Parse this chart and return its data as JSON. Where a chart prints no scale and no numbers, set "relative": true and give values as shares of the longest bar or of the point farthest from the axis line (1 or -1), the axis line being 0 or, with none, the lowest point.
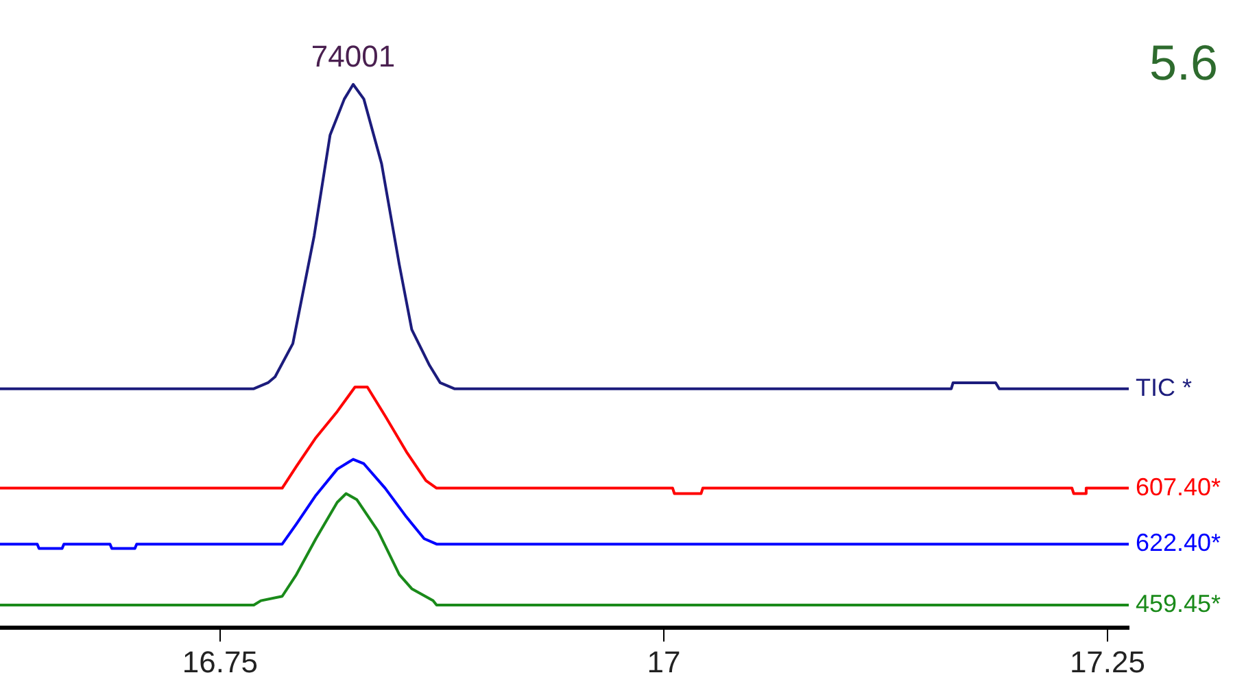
{
  "chart_data": {
    "type": "line",
    "relative": true,
    "xlim": [
      16.626,
      17.262
    ],
    "xticks": [
      16.75,
      17,
      17.25
    ],
    "marker": "none",
    "line_style": "solid",
    "legend": false,
    "annotations": [
      {
        "text": "74001",
        "x": 16.825,
        "y": 1
      },
      "5.6"
    ],
    "series": [
      {
        "name": "TIC *",
        "color": "#1c1c7c",
        "x": [
          16.626,
          16.769,
          16.777,
          16.781,
          16.791,
          16.803,
          16.812,
          16.82,
          16.825,
          16.831,
          16.841,
          16.851,
          16.858,
          16.868,
          16.874,
          16.882,
          17.162,
          17.163,
          17.187,
          17.189,
          17.262
        ],
        "values": [
          0.44,
          0.44,
          0.451,
          0.462,
          0.523,
          0.721,
          0.907,
          0.973,
          1,
          0.973,
          0.854,
          0.668,
          0.549,
          0.483,
          0.451,
          0.44,
          0.44,
          0.451,
          0.451,
          0.44,
          0.44
        ]
      },
      {
        "name": "607.40*",
        "color": "#ff0000",
        "x": [
          16.626,
          16.785,
          16.793,
          16.804,
          16.816,
          16.826,
          16.833,
          16.843,
          16.855,
          16.866,
          16.872,
          17.005,
          17.006,
          17.021,
          17.022,
          17.23,
          17.231,
          17.238,
          17.238,
          17.262
        ],
        "values": [
          0.257,
          0.257,
          0.297,
          0.35,
          0.398,
          0.443,
          0.443,
          0.39,
          0.324,
          0.271,
          0.257,
          0.257,
          0.247,
          0.247,
          0.257,
          0.257,
          0.247,
          0.247,
          0.257,
          0.257
        ]
      },
      {
        "name": "622.40*",
        "color": "#0000ff",
        "x": [
          16.626,
          16.647,
          16.648,
          16.661,
          16.662,
          16.688,
          16.689,
          16.702,
          16.703,
          16.785,
          16.793,
          16.804,
          16.816,
          16.825,
          16.831,
          16.843,
          16.855,
          16.865,
          16.872,
          17.262
        ],
        "values": [
          0.154,
          0.154,
          0.146,
          0.146,
          0.154,
          0.154,
          0.146,
          0.146,
          0.154,
          0.154,
          0.191,
          0.244,
          0.292,
          0.31,
          0.302,
          0.257,
          0.204,
          0.164,
          0.154,
          0.154
        ]
      },
      {
        "name": "459.45*",
        "color": "#1a8a1a",
        "x": [
          16.626,
          16.769,
          16.773,
          16.785,
          16.793,
          16.804,
          16.816,
          16.821,
          16.827,
          16.839,
          16.851,
          16.858,
          16.87,
          16.872,
          17.262
        ],
        "values": [
          0.042,
          0.042,
          0.05,
          0.058,
          0.098,
          0.164,
          0.231,
          0.247,
          0.236,
          0.178,
          0.098,
          0.072,
          0.05,
          0.042,
          0.042
        ]
      }
    ]
  }
}
